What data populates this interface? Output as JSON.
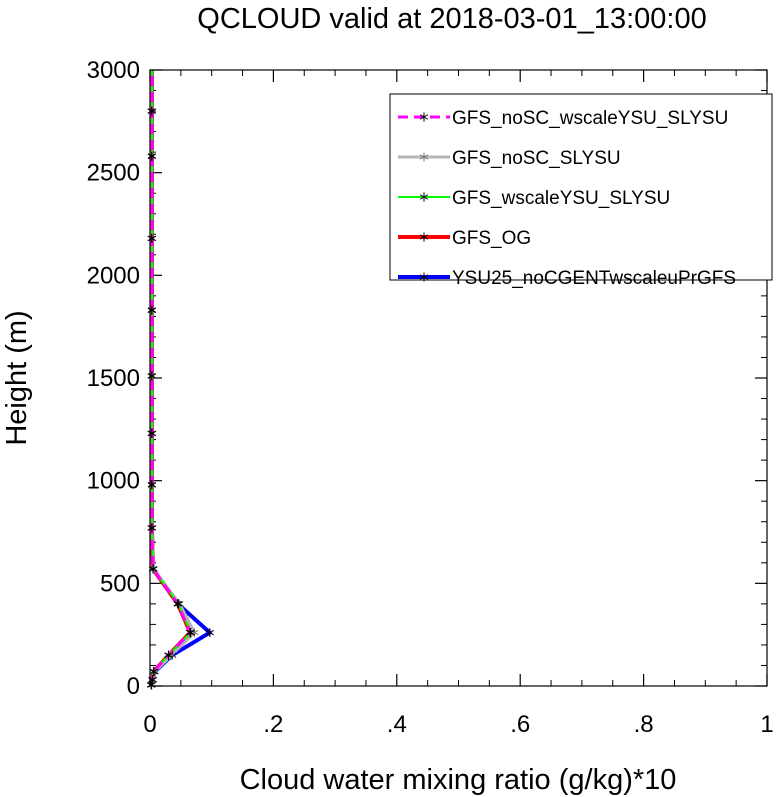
{
  "chart_data": {
    "type": "line",
    "title": "QCLOUD valid at 2018-03-01_13:00:00",
    "xlabel": "Cloud water mixing ratio (g/kg)*10",
    "ylabel": "Height (m)",
    "xlim": [
      0,
      1
    ],
    "ylim": [
      0,
      3000
    ],
    "x_ticks": [
      0,
      0.2,
      0.4,
      0.6,
      0.8,
      1
    ],
    "x_tick_labels": [
      "0",
      ".2",
      ".4",
      ".6",
      ".8",
      "1"
    ],
    "y_ticks": [
      0,
      500,
      1000,
      1500,
      2000,
      2500,
      3000
    ],
    "y_tick_labels": [
      "0",
      "500",
      "1000",
      "1500",
      "2000",
      "2500",
      "3000"
    ],
    "grid": false,
    "legend_position": "top-right",
    "series": [
      {
        "name": "GFS_noSC_wscaleYSU_SLYSU",
        "color": "#ff00ff",
        "dashed": true,
        "width": 3,
        "x": [
          0.002,
          0.004,
          0.006,
          0.03,
          0.065,
          0.045,
          0.005,
          0.003,
          0.003,
          0.003,
          0.003,
          0.003,
          0.003,
          0.003,
          0.003,
          0.003
        ],
        "y": [
          5,
          30,
          70,
          150,
          260,
          400,
          570,
          770,
          980,
          1230,
          1510,
          1830,
          2180,
          2580,
          2800,
          3000
        ]
      },
      {
        "name": "GFS_noSC_SLYSU",
        "color": "#b4b4b4",
        "dashed": false,
        "width": 3,
        "x": [
          0.003,
          0.005,
          0.008,
          0.035,
          0.072,
          0.048,
          0.006,
          0.003,
          0.003,
          0.003,
          0.003,
          0.003,
          0.003,
          0.003,
          0.003,
          0.003
        ],
        "y": [
          5,
          30,
          70,
          150,
          260,
          400,
          570,
          770,
          980,
          1230,
          1510,
          1830,
          2180,
          2580,
          2800,
          3000
        ]
      },
      {
        "name": "GFS_wscaleYSU_SLYSU",
        "color": "#00ff00",
        "dashed": false,
        "width": 2,
        "x": [
          0.002,
          0.004,
          0.006,
          0.03,
          0.066,
          0.046,
          0.005,
          0.003,
          0.003,
          0.003,
          0.003,
          0.003,
          0.003,
          0.003,
          0.003,
          0.003
        ],
        "y": [
          5,
          30,
          70,
          150,
          260,
          400,
          570,
          770,
          980,
          1230,
          1510,
          1830,
          2180,
          2580,
          2800,
          3000
        ]
      },
      {
        "name": "GFS_OG",
        "color": "#ff0000",
        "dashed": false,
        "width": 4,
        "x": [
          0.002,
          0.004,
          0.006,
          0.03,
          0.065,
          0.045,
          0.005,
          0.003,
          0.003,
          0.003,
          0.003,
          0.003,
          0.003,
          0.003,
          0.003,
          0.003
        ],
        "y": [
          5,
          30,
          70,
          150,
          260,
          400,
          570,
          770,
          980,
          1230,
          1510,
          1830,
          2180,
          2580,
          2800,
          3000
        ]
      },
      {
        "name": "YSU25_noCGENTwscaleuPrGFS",
        "color": "#0000ff",
        "dashed": false,
        "width": 4,
        "x": [
          0.002,
          0.004,
          0.008,
          0.036,
          0.097,
          0.045,
          0.005,
          0.003,
          0.003,
          0.003,
          0.003,
          0.003,
          0.003,
          0.003,
          0.003,
          0.003
        ],
        "y": [
          5,
          30,
          70,
          150,
          260,
          400,
          570,
          770,
          980,
          1230,
          1510,
          1830,
          2180,
          2580,
          2800,
          3000
        ]
      }
    ]
  }
}
